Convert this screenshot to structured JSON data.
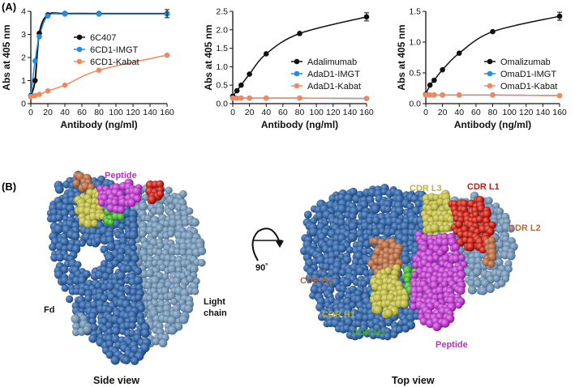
{
  "panels": {
    "a_label": "(A)",
    "b_label": "(B)"
  },
  "colors": {
    "black": "#111111",
    "blue": "#1e8fe6",
    "orange": "#f08a5d",
    "fd_blue": "#2f5f9e",
    "light_chain": "#6d8fb0",
    "peptide": "#b532c2",
    "cdr_l1": "#c0170f",
    "cdr_l2": "#b06840",
    "cdr_l3": "#b7b33e",
    "cdr_h1": "#b7b33e",
    "cdr_h2": "#b06840",
    "cdr_h3": "#3fae27"
  },
  "chart_data": [
    {
      "type": "line",
      "xlabel": "Antibody (ng/ml)",
      "ylabel": "Abs at 405 nm",
      "xlim": [
        0,
        160
      ],
      "ylim": [
        0,
        4
      ],
      "xticks": [
        0,
        20,
        40,
        60,
        80,
        100,
        120,
        140,
        160
      ],
      "yticks": [
        0,
        1,
        2,
        3,
        4
      ],
      "legend_position": "center-right",
      "series": [
        {
          "name": "6C407",
          "color": "#111111",
          "x": [
            0,
            5,
            10,
            20,
            40,
            80,
            160
          ],
          "y": [
            0.35,
            1.0,
            3.05,
            3.85,
            3.9,
            3.9,
            3.9
          ]
        },
        {
          "name": "6CD1-IMGT",
          "color": "#1e8fe6",
          "x": [
            0,
            5,
            10,
            20,
            40,
            80,
            160
          ],
          "y": [
            0.32,
            1.85,
            2.9,
            3.8,
            3.88,
            3.88,
            3.88
          ]
        },
        {
          "name": "6CD1-Kabat",
          "color": "#f08a5d",
          "x": [
            0,
            5,
            10,
            20,
            40,
            80,
            160
          ],
          "y": [
            0.3,
            0.35,
            0.4,
            0.55,
            0.8,
            1.45,
            2.1
          ]
        }
      ]
    },
    {
      "type": "line",
      "xlabel": "Antibody (ng/ml)",
      "ylabel": "Abs at 405 nm",
      "xlim": [
        0,
        160
      ],
      "ylim": [
        0,
        2.5
      ],
      "xticks": [
        0,
        20,
        40,
        60,
        80,
        100,
        120,
        140,
        160
      ],
      "yticks": [
        0.0,
        0.5,
        1.0,
        1.5,
        2.0,
        2.5
      ],
      "legend_position": "center-right",
      "series": [
        {
          "name": "Adalimumab",
          "color": "#111111",
          "x": [
            0,
            5,
            10,
            20,
            40,
            80,
            160
          ],
          "y": [
            0.2,
            0.35,
            0.5,
            0.8,
            1.35,
            1.9,
            2.35
          ]
        },
        {
          "name": "AdaD1-IMGT",
          "color": "#1e8fe6",
          "x": [
            0,
            5,
            10,
            20,
            40,
            80,
            160
          ],
          "y": [
            0.15,
            0.15,
            0.15,
            0.15,
            0.15,
            0.15,
            0.14
          ]
        },
        {
          "name": "AdaD1-Kabat",
          "color": "#f08a5d",
          "x": [
            0,
            5,
            10,
            20,
            40,
            80,
            160
          ],
          "y": [
            0.15,
            0.15,
            0.15,
            0.15,
            0.15,
            0.15,
            0.14
          ]
        }
      ]
    },
    {
      "type": "line",
      "xlabel": "Antibody (ng/ml)",
      "ylabel": "Abs at 405 nm",
      "xlim": [
        0,
        160
      ],
      "ylim": [
        0,
        1.5
      ],
      "xticks": [
        0,
        20,
        40,
        60,
        80,
        100,
        120,
        140,
        160
      ],
      "yticks": [
        0.0,
        0.5,
        1.0,
        1.5
      ],
      "legend_position": "center-right",
      "series": [
        {
          "name": "Omalizumab",
          "color": "#111111",
          "x": [
            0,
            5,
            10,
            20,
            40,
            80,
            160
          ],
          "y": [
            0.15,
            0.3,
            0.38,
            0.55,
            0.82,
            1.17,
            1.42
          ]
        },
        {
          "name": "OmaD1-IMGT",
          "color": "#1e8fe6",
          "x": [
            0,
            5,
            10,
            20,
            40,
            80,
            160
          ],
          "y": [
            0.14,
            0.14,
            0.14,
            0.14,
            0.14,
            0.14,
            0.13
          ]
        },
        {
          "name": "OmaD1-Kabat",
          "color": "#f08a5d",
          "x": [
            0,
            5,
            10,
            20,
            40,
            80,
            160
          ],
          "y": [
            0.14,
            0.14,
            0.14,
            0.14,
            0.14,
            0.14,
            0.13
          ]
        }
      ]
    }
  ],
  "structure": {
    "side_view": {
      "title": "Side view",
      "labels": {
        "peptide": "Peptide",
        "fd": "Fd",
        "light_chain": "Light\nchain"
      }
    },
    "rotation": {
      "label": "90˚"
    },
    "top_view": {
      "title": "Top view",
      "labels": {
        "cdr_l3": "CDR L3",
        "cdr_l1": "CDR L1",
        "cdr_l2": "CDR L2",
        "cdr_h2": "CDR H2",
        "cdr_h1": "CDR H1",
        "cdr_h3": "CDR H3",
        "peptide": "Peptide"
      }
    }
  }
}
